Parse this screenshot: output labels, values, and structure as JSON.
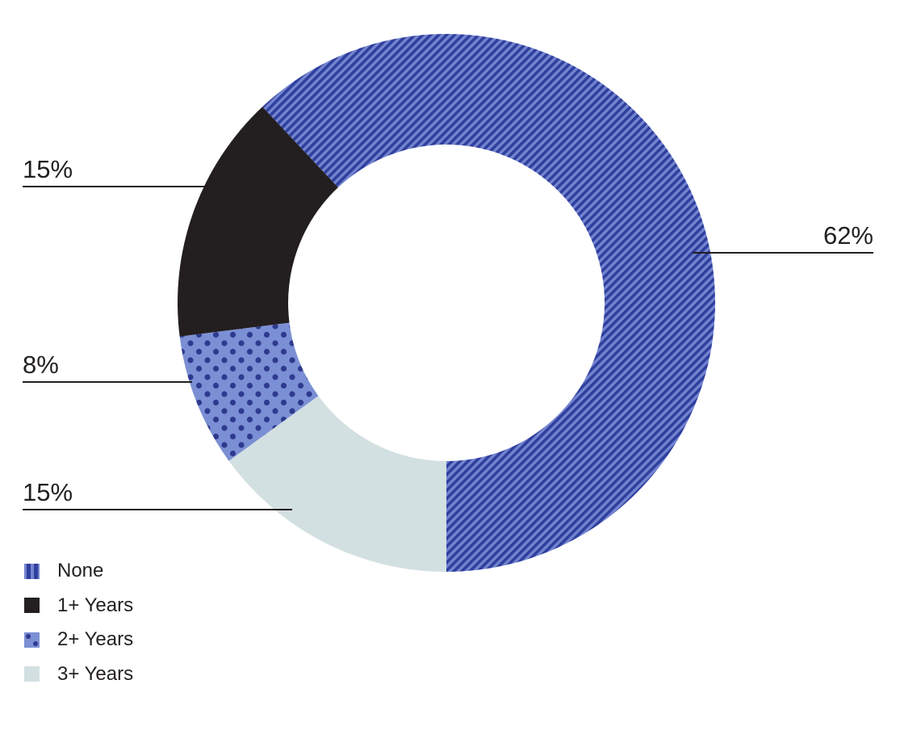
{
  "chart_data": {
    "type": "pie",
    "donut": true,
    "categories": [
      "None",
      "1+ Years",
      "2+ Years",
      "3+ Years"
    ],
    "values": [
      62,
      15,
      8,
      15
    ],
    "labels": [
      "62%",
      "15%",
      "8%",
      "15%"
    ],
    "title": "",
    "legend_position": "bottom-left",
    "colors": {
      "None": "#3f51b5",
      "1+ Years": "#231f20",
      "2+ Years": "#7b8fd4",
      "3+ Years": "#d3e0e2"
    },
    "patterns": {
      "None": "diagonal-stripes",
      "1+ Years": "solid",
      "2+ Years": "dots",
      "3+ Years": "solid"
    }
  }
}
